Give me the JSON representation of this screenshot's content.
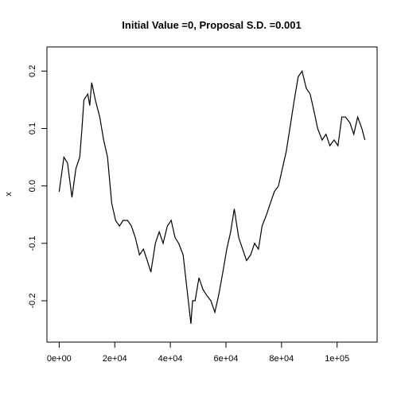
{
  "chart_data": {
    "type": "line",
    "title": "Initial Value =0, Proposal S.D. =0.001",
    "ylabel": "x",
    "x": [
      0,
      1700,
      3000,
      4600,
      6000,
      7400,
      8200,
      8900,
      10300,
      11000,
      11700,
      13000,
      14600,
      16000,
      17400,
      18900,
      20300,
      21700,
      23000,
      24600,
      26000,
      27400,
      28900,
      30300,
      31700,
      33000,
      34600,
      36000,
      37400,
      38900,
      40300,
      41700,
      43000,
      44600,
      46000,
      47400,
      48000,
      48900,
      50300,
      51700,
      53000,
      54600,
      56000,
      57400,
      58900,
      60300,
      61700,
      63000,
      64600,
      66000,
      67400,
      68900,
      70300,
      71700,
      73000,
      74600,
      76000,
      77400,
      78900,
      80300,
      81700,
      83000,
      84600,
      86000,
      87400,
      88900,
      90300,
      91700,
      93000,
      94600,
      96000,
      97400,
      98900,
      100300,
      101700,
      103000,
      104600,
      106000,
      107400,
      108900,
      110000
    ],
    "series": [
      {
        "color": "#000000",
        "values": [
          -0.01,
          0.05,
          0.04,
          -0.02,
          0.03,
          0.05,
          0.1,
          0.15,
          0.16,
          0.14,
          0.18,
          0.15,
          0.12,
          0.08,
          0.05,
          -0.03,
          -0.06,
          -0.07,
          -0.06,
          -0.06,
          -0.07,
          -0.09,
          -0.12,
          -0.11,
          -0.13,
          -0.15,
          -0.1,
          -0.08,
          -0.1,
          -0.07,
          -0.06,
          -0.09,
          -0.1,
          -0.12,
          -0.18,
          -0.24,
          -0.2,
          -0.2,
          -0.16,
          -0.18,
          -0.19,
          -0.2,
          -0.22,
          -0.19,
          -0.15,
          -0.11,
          -0.08,
          -0.04,
          -0.09,
          -0.11,
          -0.13,
          -0.12,
          -0.1,
          -0.11,
          -0.07,
          -0.05,
          -0.03,
          -0.01,
          0.0,
          0.03,
          0.06,
          0.1,
          0.15,
          0.19,
          0.2,
          0.17,
          0.16,
          0.13,
          0.1,
          0.08,
          0.09,
          0.07,
          0.08,
          0.07,
          0.12,
          0.12,
          0.11,
          0.09,
          0.12,
          0.1,
          0.08
        ]
      }
    ],
    "xlim": [
      -4400,
      114400
    ],
    "ylim": [
      -0.272,
      0.242
    ],
    "xticks": [
      {
        "value": 0,
        "label": "0e+00"
      },
      {
        "value": 20000,
        "label": "2e+04"
      },
      {
        "value": 40000,
        "label": "4e+04"
      },
      {
        "value": 60000,
        "label": "6e+04"
      },
      {
        "value": 80000,
        "label": "8e+04"
      },
      {
        "value": 100000,
        "label": "1e+05"
      }
    ],
    "yticks": [
      -0.2,
      -0.1,
      {
        "value": 0,
        "label": "0.0"
      },
      0.1,
      0.2
    ],
    "grid": false
  }
}
